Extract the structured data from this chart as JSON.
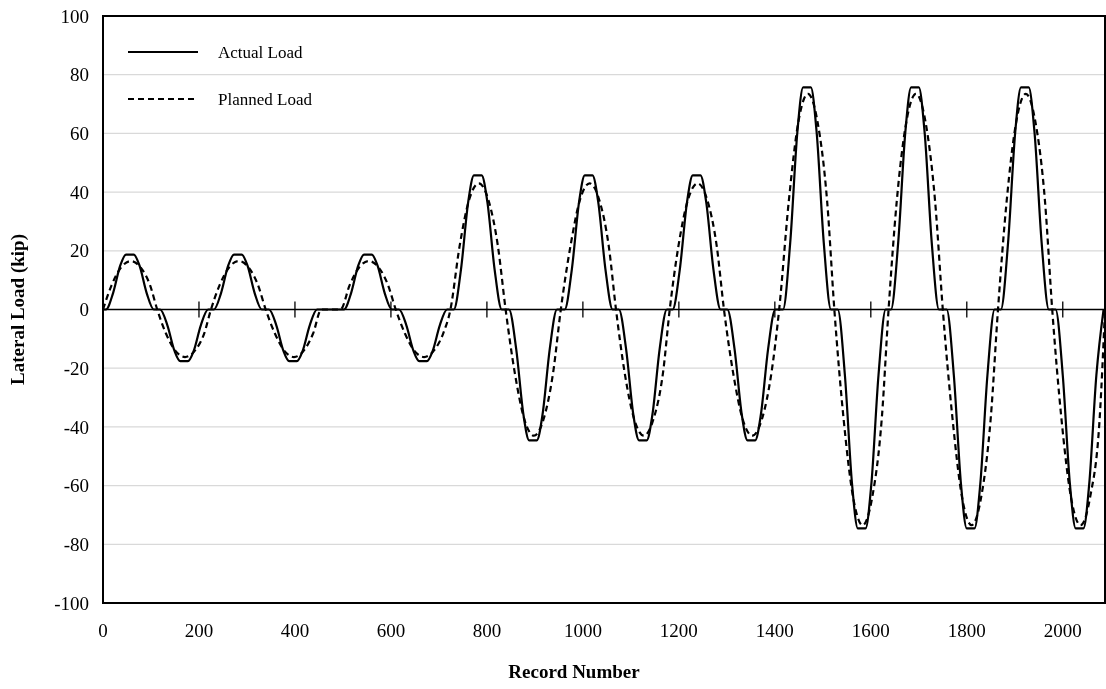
{
  "chart_data": {
    "type": "line",
    "xlabel": "Record Number",
    "ylabel": "Lateral Load (kip)",
    "xlim": [
      0,
      2088
    ],
    "ylim": [
      -100,
      100
    ],
    "xticks": [
      0,
      200,
      400,
      600,
      800,
      1000,
      1200,
      1400,
      1600,
      1800,
      2000
    ],
    "yticks": [
      -100,
      -80,
      -60,
      -40,
      -20,
      0,
      20,
      40,
      60,
      80,
      100
    ],
    "grid": "y",
    "legend": "top left",
    "series": [
      {
        "name": "Actual Load",
        "color": "#000000",
        "line_style": "solid",
        "x": [
          0,
          6,
          21,
          36,
          48,
          64,
          76,
          91,
          106,
          119,
          134,
          149,
          161,
          177,
          189,
          204,
          219,
          231,
          246,
          261,
          273,
          289,
          301,
          316,
          331,
          346,
          361,
          376,
          388,
          404,
          416,
          431,
          446,
          502,
          517,
          532,
          544,
          560,
          572,
          587,
          602,
          617,
          632,
          647,
          659,
          675,
          687,
          702,
          717,
          731,
          746,
          761,
          773,
          789,
          801,
          816,
          831,
          846,
          861,
          876,
          888,
          904,
          916,
          931,
          946,
          962,
          977,
          992,
          1004,
          1020,
          1032,
          1047,
          1062,
          1075,
          1090,
          1105,
          1117,
          1133,
          1145,
          1160,
          1175,
          1187,
          1202,
          1217,
          1229,
          1245,
          1257,
          1272,
          1287,
          1301,
          1316,
          1331,
          1343,
          1359,
          1371,
          1386,
          1401,
          1417,
          1432,
          1447,
          1459,
          1475,
          1487,
          1502,
          1517,
          1531,
          1546,
          1561,
          1573,
          1589,
          1601,
          1616,
          1631,
          1642,
          1657,
          1672,
          1684,
          1700,
          1712,
          1727,
          1742,
          1758,
          1773,
          1788,
          1800,
          1816,
          1828,
          1843,
          1858,
          1871,
          1886,
          1901,
          1913,
          1929,
          1941,
          1956,
          1971,
          1985,
          2000,
          2015,
          2027,
          2043,
          2055,
          2070,
          2085
        ],
        "values": [
          0,
          0,
          5.6,
          15.0,
          18.7,
          18.7,
          15.0,
          5.6,
          0,
          0,
          -5.3,
          -14.1,
          -17.6,
          -17.6,
          -14.1,
          -5.3,
          0,
          0,
          5.6,
          15.0,
          18.7,
          18.7,
          15.0,
          5.6,
          0,
          0,
          -5.3,
          -14.1,
          -17.6,
          -17.6,
          -14.1,
          -5.3,
          0,
          0,
          5.6,
          15.0,
          18.7,
          18.7,
          15.0,
          5.6,
          0,
          0,
          -5.3,
          -14.1,
          -17.6,
          -17.6,
          -14.1,
          -5.3,
          0,
          0,
          13.7,
          36.6,
          45.7,
          45.7,
          36.6,
          13.7,
          0,
          0,
          -13.4,
          -35.7,
          -44.6,
          -44.6,
          -35.7,
          -13.4,
          0,
          0,
          13.7,
          36.6,
          45.7,
          45.7,
          36.6,
          13.7,
          0,
          0,
          -13.4,
          -35.7,
          -44.6,
          -44.6,
          -35.7,
          -13.4,
          0,
          0,
          13.7,
          36.6,
          45.7,
          45.7,
          36.6,
          13.7,
          0,
          0,
          -13.4,
          -35.7,
          -44.6,
          -44.6,
          -35.7,
          -13.4,
          0,
          0,
          22.7,
          60.6,
          75.7,
          75.7,
          60.6,
          22.7,
          0,
          0,
          -22.4,
          -59.7,
          -74.6,
          -74.6,
          -59.7,
          -22.4,
          0,
          0,
          22.7,
          60.6,
          75.7,
          75.7,
          60.6,
          22.7,
          0,
          0,
          -22.4,
          -59.7,
          -74.6,
          -74.6,
          -59.7,
          -22.4,
          0,
          0,
          22.7,
          60.6,
          75.7,
          75.7,
          60.6,
          22.7,
          0,
          0,
          -22.4,
          -59.7,
          -74.6,
          -74.6,
          -59.7,
          -22.4,
          0
        ]
      },
      {
        "name": "Planned Load",
        "color": "#000000",
        "line_style": "dashed",
        "x": [
          0,
          18,
          38,
          58,
          78,
          98,
          113,
          131,
          151,
          171,
          191,
          211,
          225,
          243,
          263,
          283,
          303,
          323,
          339,
          358,
          378,
          398,
          418,
          438,
          455,
          495,
          514,
          534,
          554,
          574,
          594,
          610,
          629,
          649,
          669,
          689,
          709,
          724,
          743,
          763,
          783,
          803,
          823,
          839,
          858,
          878,
          898,
          918,
          938,
          954,
          974,
          994,
          1014,
          1034,
          1054,
          1069,
          1087,
          1107,
          1127,
          1147,
          1167,
          1181,
          1199,
          1219,
          1239,
          1259,
          1279,
          1294,
          1313,
          1333,
          1353,
          1373,
          1393,
          1409,
          1429,
          1449,
          1469,
          1489,
          1509,
          1524,
          1543,
          1563,
          1583,
          1603,
          1623,
          1637,
          1654,
          1674,
          1694,
          1714,
          1734,
          1750,
          1770,
          1790,
          1810,
          1830,
          1850,
          1865,
          1883,
          1903,
          1923,
          1943,
          1963,
          1978,
          1997,
          2017,
          2037,
          2057,
          2077,
          2088
        ],
        "values": [
          0,
          8.3,
          14.4,
          16.5,
          14.4,
          8.3,
          0,
          -8.1,
          -14.1,
          -16.2,
          -14.1,
          -8.1,
          0,
          8.3,
          14.4,
          16.5,
          14.4,
          8.3,
          0,
          -8.1,
          -14.1,
          -16.2,
          -14.1,
          -8.1,
          0,
          0,
          8.3,
          14.4,
          16.5,
          14.4,
          8.3,
          0,
          -8.1,
          -14.1,
          -16.2,
          -14.1,
          -8.1,
          0,
          21.5,
          37.4,
          43,
          37.4,
          21.5,
          0,
          -21.5,
          -37.4,
          -43,
          -37.4,
          -21.5,
          0,
          21.5,
          37.4,
          43,
          37.4,
          21.5,
          0,
          -21.5,
          -37.4,
          -43,
          -37.4,
          -21.5,
          0,
          21.5,
          37.4,
          43,
          37.4,
          21.5,
          0,
          -21.5,
          -37.4,
          -43,
          -37.4,
          -21.5,
          0,
          36.8,
          63.9,
          73.5,
          63.9,
          36.8,
          0,
          -36.8,
          -63.9,
          -73.5,
          -63.9,
          -36.8,
          0,
          36.8,
          63.9,
          73.5,
          63.9,
          36.8,
          0,
          -36.8,
          -63.9,
          -73.5,
          -63.9,
          -36.8,
          0,
          36.8,
          63.9,
          73.5,
          63.9,
          36.8,
          0,
          -36.8,
          -63.9,
          -73.5,
          -63.9,
          -36.8,
          0
        ]
      }
    ]
  }
}
